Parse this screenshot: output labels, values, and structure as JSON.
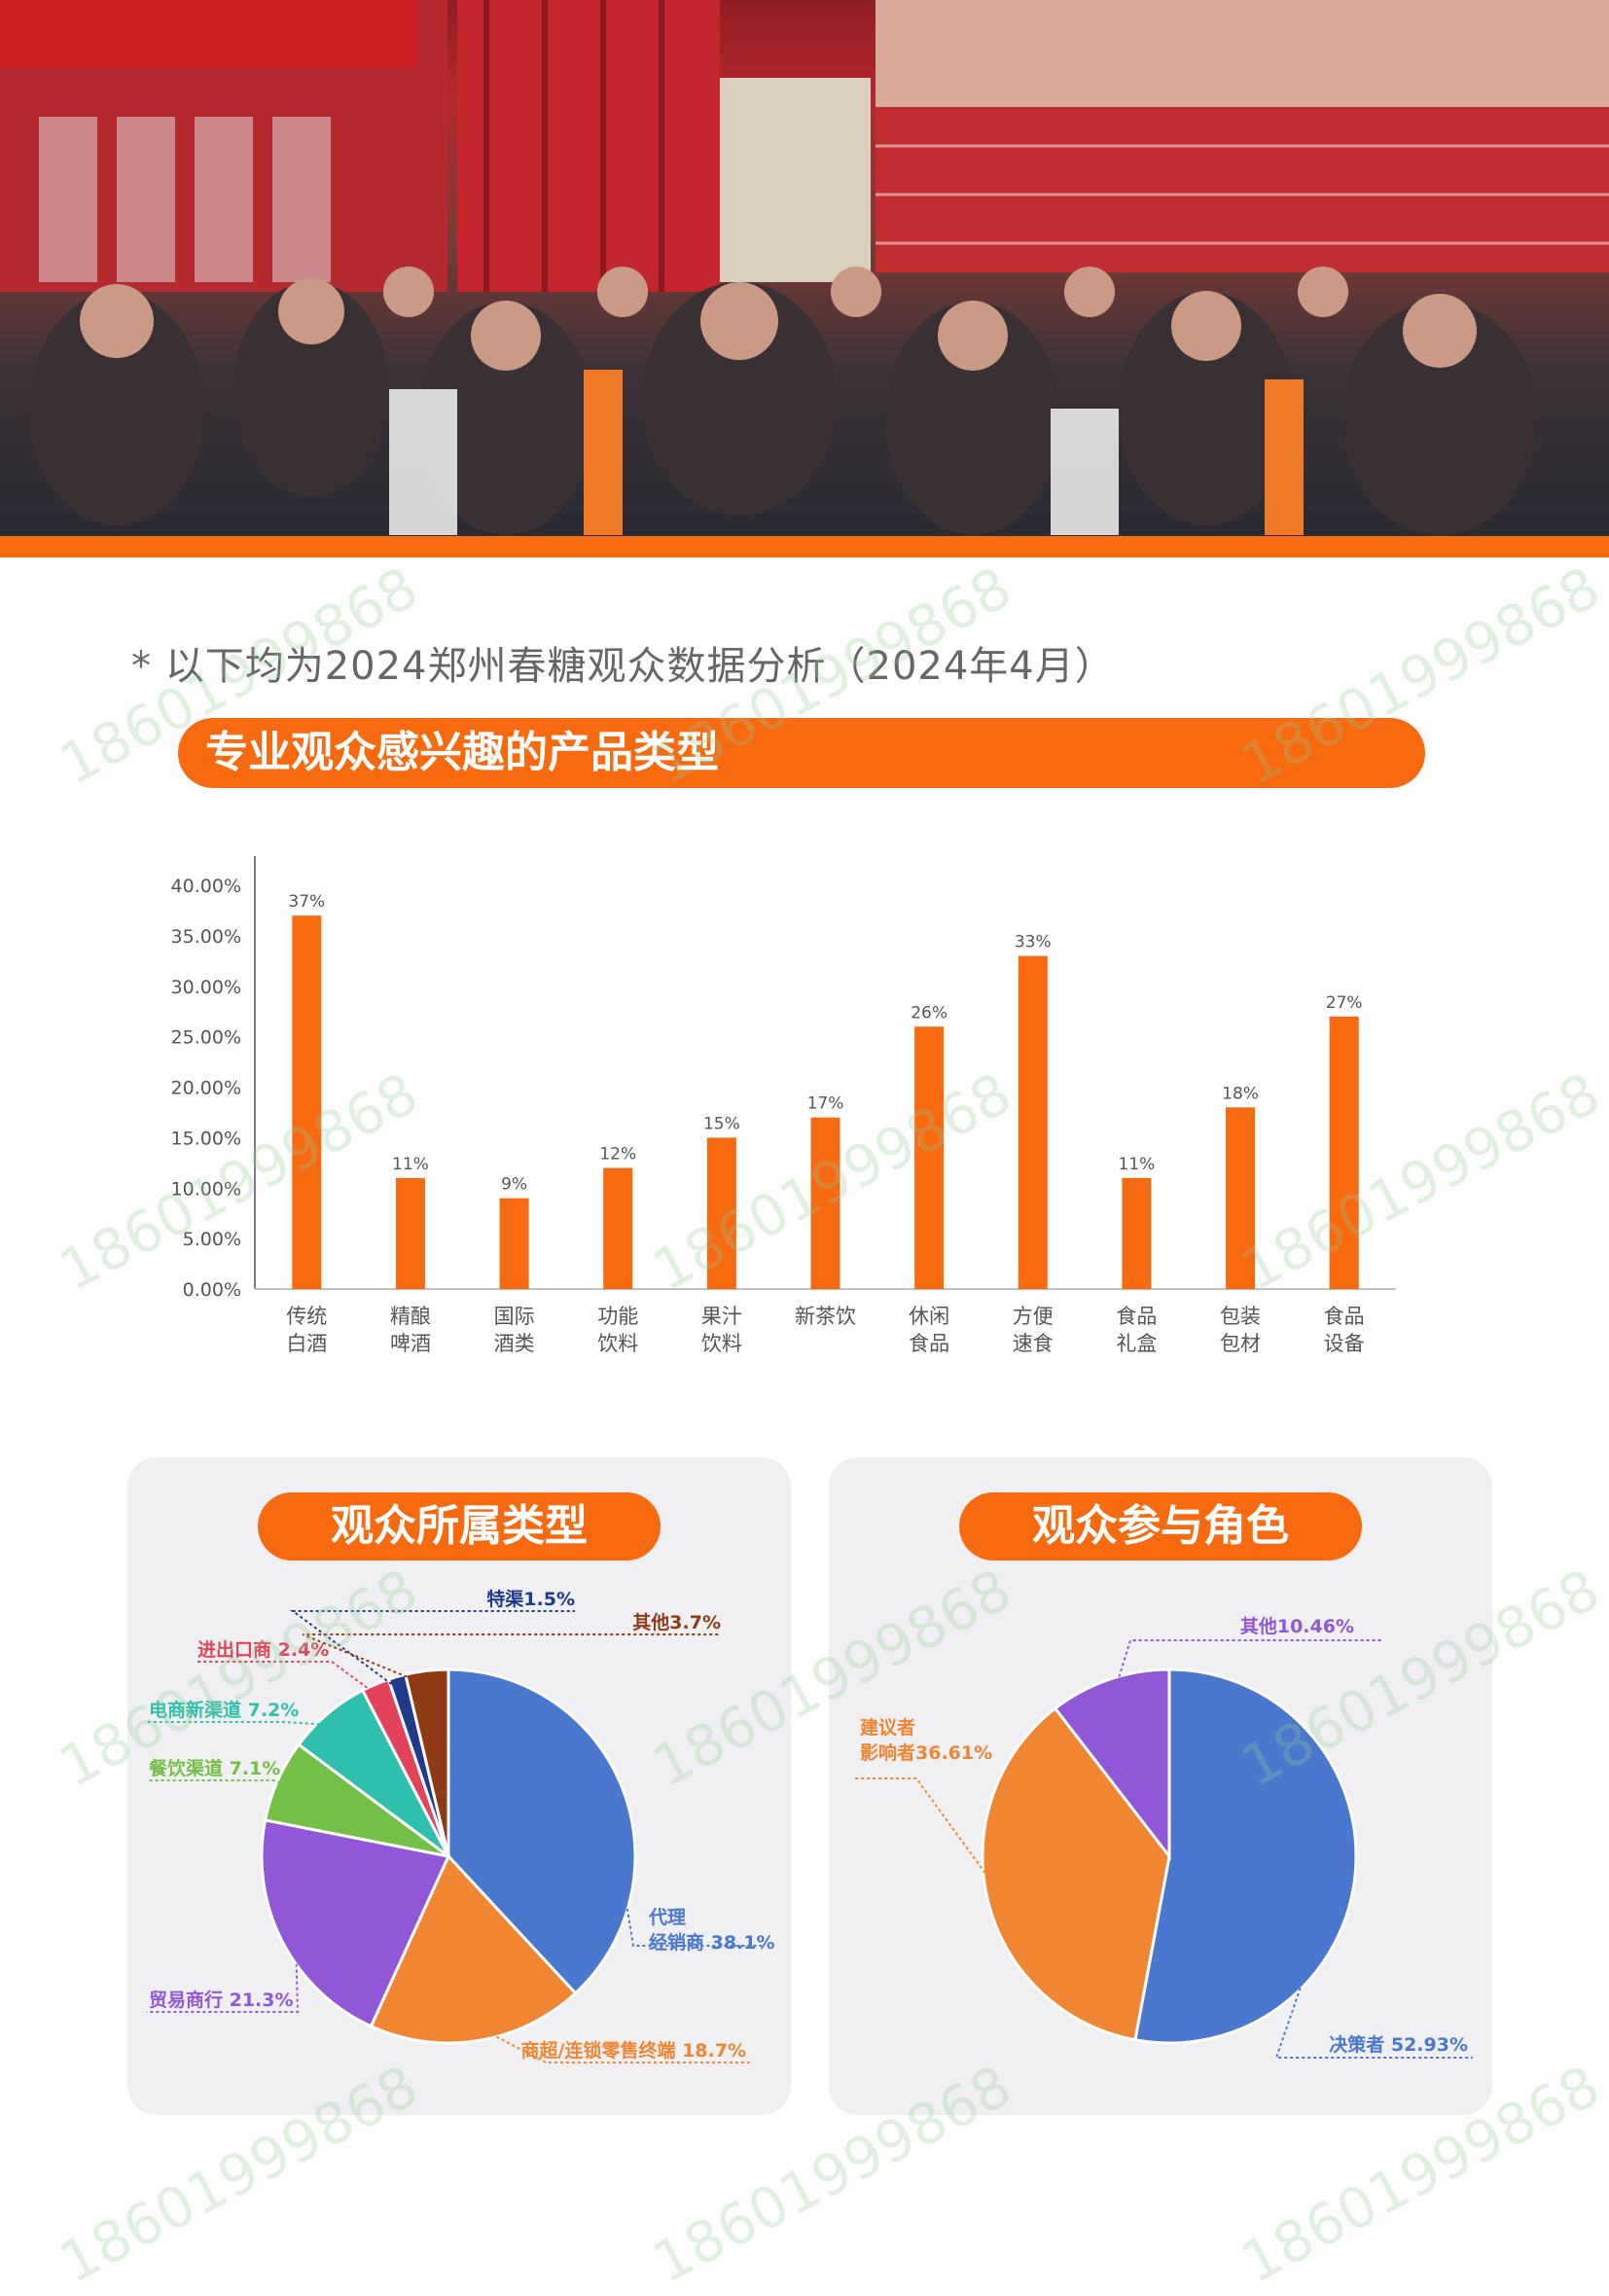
{
  "note": "* 以下均为2024郑州春糖观众数据分析（2024年4月）",
  "banner_title": "专业观众感兴趣的产品类型",
  "colors": {
    "accent": "#f76a10",
    "panel_bg": "#f0f0f2"
  },
  "chart_data": [
    {
      "type": "bar",
      "categories": [
        [
          "传统",
          "白酒"
        ],
        [
          "精酿",
          "啤酒"
        ],
        [
          "国际",
          "酒类"
        ],
        [
          "功能",
          "饮料"
        ],
        [
          "果汁",
          "饮料"
        ],
        [
          "新茶饮"
        ],
        [
          "休闲",
          "食品"
        ],
        [
          "方便",
          "速食"
        ],
        [
          "食品",
          "礼盒"
        ],
        [
          "包装",
          "包材"
        ],
        [
          "食品",
          "设备"
        ]
      ],
      "values": [
        37,
        11,
        9,
        12,
        15,
        17,
        26,
        33,
        11,
        18,
        27
      ],
      "value_labels": [
        "37%",
        "11%",
        "9%",
        "12%",
        "15%",
        "17%",
        "26%",
        "33%",
        "11%",
        "18%",
        "27%"
      ],
      "yticks": [
        "0.00%",
        "5.00%",
        "10.00%",
        "15.00%",
        "20.00%",
        "25.00%",
        "30.00%",
        "35.00%",
        "40.00%"
      ],
      "ylim": [
        0,
        40
      ],
      "color": "#f76a10"
    },
    {
      "type": "pie",
      "title": "观众所属类型",
      "slices": [
        {
          "label": "代理",
          "label2": "经销商 38.1%",
          "value": 38.1,
          "color": "#4a78cf"
        },
        {
          "label": "商超/连锁零售终端 18.7%",
          "value": 18.7,
          "color": "#f08532"
        },
        {
          "label": "贸易商行 21.3%",
          "value": 21.3,
          "color": "#9257d8"
        },
        {
          "label": "餐饮渠道  7.1%",
          "value": 7.1,
          "color": "#74c047"
        },
        {
          "label": "电商新渠道  7.2%",
          "value": 7.2,
          "color": "#2fbfad"
        },
        {
          "label": "进出口商  2.4%",
          "value": 2.4,
          "color": "#e2435a"
        },
        {
          "label": "特渠1.5%",
          "value": 1.5,
          "color": "#1f3a8c"
        },
        {
          "label": "其他3.7%",
          "value": 3.7,
          "color": "#8e3b16"
        }
      ]
    },
    {
      "type": "pie",
      "title": "观众参与角色",
      "slices": [
        {
          "label": "决策者  52.93%",
          "value": 52.93,
          "color": "#4a78cf"
        },
        {
          "label": "建议者",
          "label2": "影响者36.61%",
          "value": 36.61,
          "color": "#f08532"
        },
        {
          "label": "其他10.46%",
          "value": 10.46,
          "color": "#9257d8"
        }
      ]
    }
  ],
  "watermark": "18601999868"
}
